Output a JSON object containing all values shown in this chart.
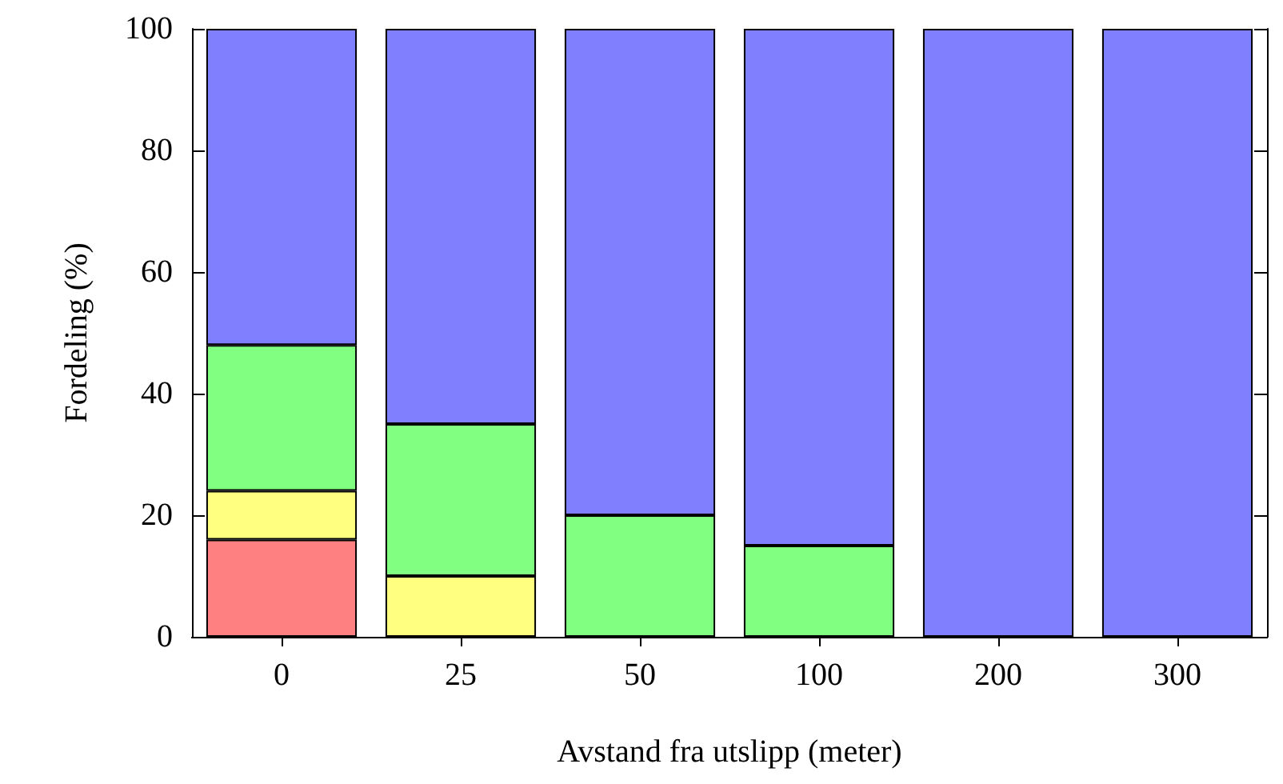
{
  "chart_data": {
    "type": "bar",
    "stacked": true,
    "xlabel": "Avstand fra utslipp (meter)",
    "ylabel": "Fordeling (%)",
    "categories": [
      "0",
      "25",
      "50",
      "100",
      "200",
      "300"
    ],
    "series": [
      {
        "color": "#ff8080",
        "values": [
          16,
          null,
          null,
          null,
          null,
          null
        ]
      },
      {
        "color": "#ffff80",
        "values": [
          8,
          10,
          null,
          null,
          null,
          null
        ]
      },
      {
        "color": "#80ff80",
        "values": [
          24,
          25,
          20,
          15,
          null,
          null
        ]
      },
      {
        "color": "#8080ff",
        "values": [
          52,
          65,
          80,
          85,
          100,
          100
        ]
      }
    ],
    "ylim": [
      0,
      100
    ],
    "yticks": [
      0,
      20,
      40,
      60,
      80,
      100
    ]
  }
}
